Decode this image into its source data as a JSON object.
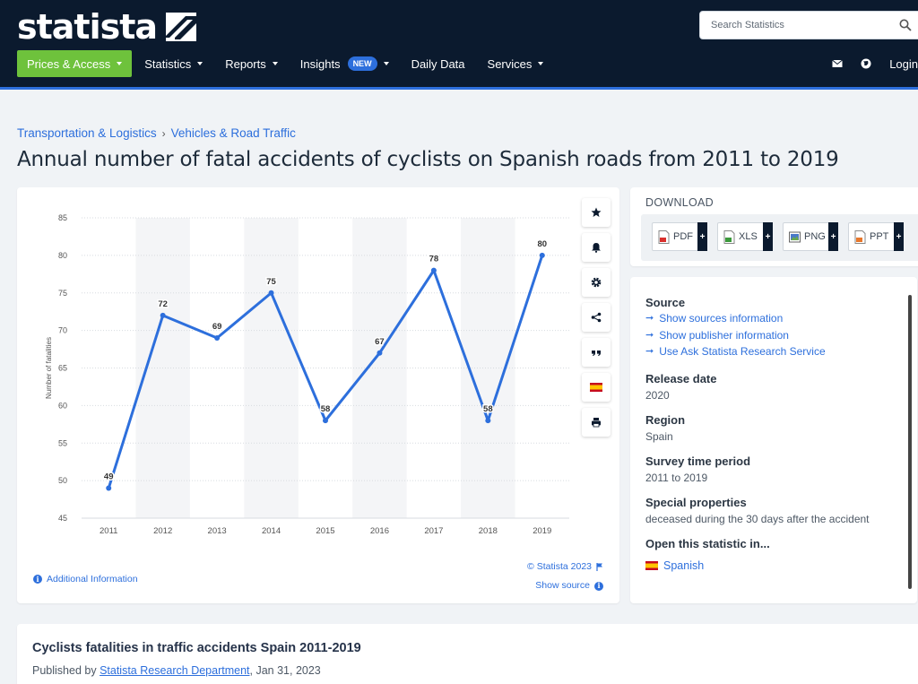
{
  "header": {
    "logo": "statista",
    "search_placeholder": "Search Statistics",
    "nav": [
      {
        "label": "Prices & Access"
      },
      {
        "label": "Statistics"
      },
      {
        "label": "Reports"
      },
      {
        "label": "Insights",
        "badge": "NEW"
      },
      {
        "label": "Daily Data"
      },
      {
        "label": "Services"
      }
    ],
    "login": "Login"
  },
  "breadcrumb": [
    "Transportation & Logistics",
    "Vehicles & Road Traffic"
  ],
  "page_title": "Annual number of fatal accidents of cyclists on Spanish roads from 2011 to 2019",
  "chart_data": {
    "type": "line",
    "categories": [
      "2011",
      "2012",
      "2013",
      "2014",
      "2015",
      "2016",
      "2017",
      "2018",
      "2019"
    ],
    "values": [
      49,
      72,
      69,
      75,
      58,
      67,
      78,
      58,
      80
    ],
    "title": "",
    "xlabel": "",
    "ylabel": "Number of fatalities",
    "ylim": [
      45,
      85
    ],
    "yticks": [
      45,
      50,
      55,
      60,
      65,
      70,
      75,
      80,
      85
    ],
    "grid": true,
    "line_color": "#2d6fdc",
    "legend": "none"
  },
  "chart_footer": {
    "additional_info": "Additional Information",
    "copyright": "© Statista 2023",
    "show_source": "Show source"
  },
  "tools": [
    "star-icon",
    "bell-icon",
    "gear-icon",
    "share-icon",
    "quote-icon",
    "spain-flag-icon",
    "print-icon"
  ],
  "download": {
    "title": "DOWNLOAD",
    "formats": [
      "PDF",
      "XLS",
      "PNG",
      "PPT"
    ],
    "plus": "+"
  },
  "info": {
    "source_title": "Source",
    "source_links": [
      "Show sources information",
      "Show publisher information",
      "Use Ask Statista Research Service"
    ],
    "release_date_title": "Release date",
    "release_date": "2020",
    "region_title": "Region",
    "region": "Spain",
    "survey_title": "Survey time period",
    "survey": "2011 to 2019",
    "special_title": "Special properties",
    "special": "deceased during the 30 days after the accident",
    "open_title": "Open this statistic in...",
    "open_language": "Spanish"
  },
  "bottom": {
    "title": "Cyclists fatalities in traffic accidents Spain 2011-2019",
    "published_prefix": "Published by ",
    "publisher": "Statista Research Department",
    "date": ", Jan 31, 2023"
  }
}
